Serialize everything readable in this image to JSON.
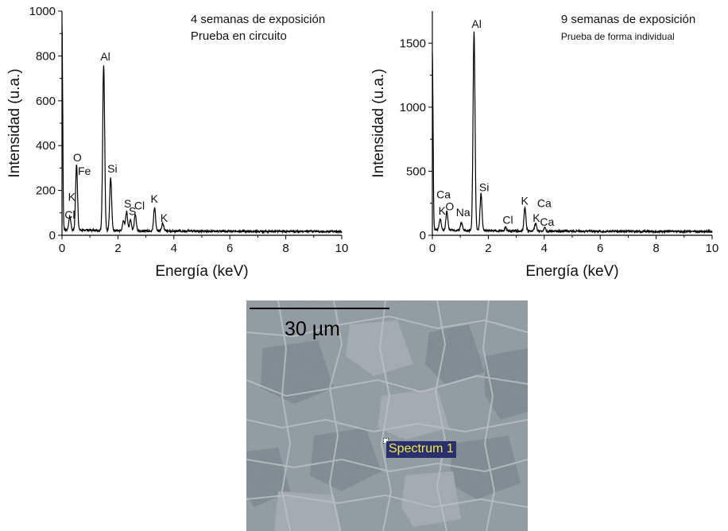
{
  "chart_data": [
    {
      "type": "line",
      "annotations": [
        "4 semanas de exposición",
        "Prueba en circuito"
      ],
      "xlabel": "Energía (keV)",
      "ylabel": "Intensidad (u.a.)",
      "xlim": [
        0,
        10
      ],
      "ylim": [
        0,
        1000
      ],
      "xticks": [
        0,
        2,
        4,
        6,
        8,
        10
      ],
      "yticks": [
        0,
        200,
        400,
        600,
        800,
        1000
      ],
      "grid": false,
      "peaks": [
        {
          "x": 0.0,
          "y": 920
        },
        {
          "x": 0.28,
          "y": 60
        },
        {
          "x": 0.52,
          "y": 290
        },
        {
          "x": 1.49,
          "y": 740
        },
        {
          "x": 1.74,
          "y": 235
        },
        {
          "x": 2.2,
          "y": 45
        },
        {
          "x": 2.31,
          "y": 85
        },
        {
          "x": 2.45,
          "y": 50
        },
        {
          "x": 2.62,
          "y": 75
        },
        {
          "x": 3.31,
          "y": 105
        },
        {
          "x": 3.6,
          "y": 35
        }
      ],
      "peak_labels": [
        {
          "text": "Cl",
          "x": 0.28,
          "y": 75
        },
        {
          "text": "K",
          "x": 0.35,
          "y": 155
        },
        {
          "text": "O",
          "x": 0.55,
          "y": 330
        },
        {
          "text": "Fe",
          "x": 0.8,
          "y": 270
        },
        {
          "text": "Al",
          "x": 1.55,
          "y": 780
        },
        {
          "text": "Si",
          "x": 1.8,
          "y": 280
        },
        {
          "text": "S",
          "x": 2.35,
          "y": 125
        },
        {
          "text": "S",
          "x": 2.52,
          "y": 90
        },
        {
          "text": "Cl",
          "x": 2.77,
          "y": 115
        },
        {
          "text": "K",
          "x": 3.3,
          "y": 145
        },
        {
          "text": "K",
          "x": 3.65,
          "y": 60
        }
      ]
    },
    {
      "type": "line",
      "annotations": [
        "9 semanas de exposición",
        "Prueba de forma individual"
      ],
      "xlabel": "Energía (keV)",
      "ylabel": "Intensidad (u.a.)",
      "xlim": [
        0,
        10
      ],
      "ylim": [
        0,
        1750
      ],
      "xticks": [
        0,
        2,
        4,
        6,
        8,
        10
      ],
      "yticks": [
        0,
        500,
        1000,
        1500
      ],
      "grid": false,
      "peaks": [
        {
          "x": 0.0,
          "y": 1380
        },
        {
          "x": 0.28,
          "y": 90
        },
        {
          "x": 0.52,
          "y": 150
        },
        {
          "x": 1.04,
          "y": 60
        },
        {
          "x": 1.49,
          "y": 1550
        },
        {
          "x": 1.74,
          "y": 290
        },
        {
          "x": 2.62,
          "y": 25
        },
        {
          "x": 3.31,
          "y": 180
        },
        {
          "x": 3.69,
          "y": 60
        },
        {
          "x": 4.01,
          "y": 25
        }
      ],
      "peak_labels": [
        {
          "text": "Ca",
          "x": 0.4,
          "y": 290
        },
        {
          "text": "K",
          "x": 0.35,
          "y": 160
        },
        {
          "text": "O",
          "x": 0.62,
          "y": 195
        },
        {
          "text": "Na",
          "x": 1.1,
          "y": 150
        },
        {
          "text": "Al",
          "x": 1.58,
          "y": 1620
        },
        {
          "text": "Si",
          "x": 1.85,
          "y": 345
        },
        {
          "text": "Cl",
          "x": 2.7,
          "y": 90
        },
        {
          "text": "K",
          "x": 3.3,
          "y": 240
        },
        {
          "text": "Ca",
          "x": 4.0,
          "y": 220
        },
        {
          "text": "K",
          "x": 3.72,
          "y": 105
        },
        {
          "text": "Ca",
          "x": 4.1,
          "y": 75
        }
      ]
    }
  ],
  "sem_image": {
    "scale_label": "30 µm",
    "spectrum_label": "Spectrum 1"
  }
}
